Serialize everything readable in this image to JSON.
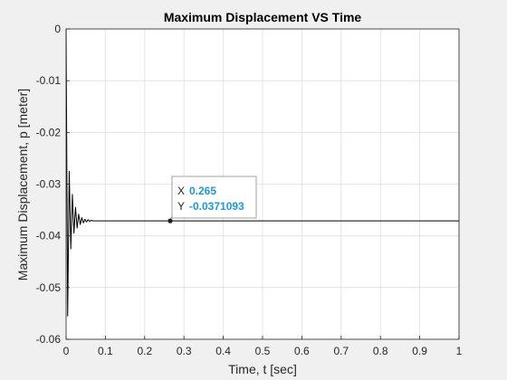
{
  "chart_data": {
    "type": "line",
    "title": "Maximum Displacement VS Time",
    "xlabel": "Time, t [sec]",
    "ylabel": "Maximum Displacement, p [meter]",
    "xlim": [
      0,
      1
    ],
    "ylim": [
      -0.06,
      0
    ],
    "xticks": [
      "0",
      "0.1",
      "0.2",
      "0.3",
      "0.4",
      "0.5",
      "0.6",
      "0.7",
      "0.8",
      "0.9",
      "1"
    ],
    "yticks": [
      "0",
      "-0.01",
      "-0.02",
      "-0.03",
      "-0.04",
      "-0.05",
      "-0.06"
    ],
    "grid": true,
    "line_color": "#000000",
    "series": [
      {
        "x": [
          0,
          0.004,
          0.008,
          0.012,
          0.016,
          0.02,
          0.024,
          0.028,
          0.032,
          0.036,
          0.04,
          0.044,
          0.048,
          0.052,
          0.056,
          0.06,
          0.064,
          0.068,
          0.072,
          0.08,
          0.09,
          1.0
        ],
        "y": [
          0,
          -0.0555,
          -0.0275,
          -0.0425,
          -0.032,
          -0.0395,
          -0.0345,
          -0.0385,
          -0.0358,
          -0.0378,
          -0.0365,
          -0.0375,
          -0.0368,
          -0.0373,
          -0.0369,
          -0.0372,
          -0.037,
          -0.0371,
          -0.0371,
          -0.0371,
          -0.0371093,
          -0.0371093
        ]
      }
    ],
    "datatip": {
      "x_key": "X",
      "x_value": "0.265",
      "y_key": "Y",
      "y_value": "-0.0371093",
      "x": 0.265,
      "y": -0.0371093
    }
  }
}
